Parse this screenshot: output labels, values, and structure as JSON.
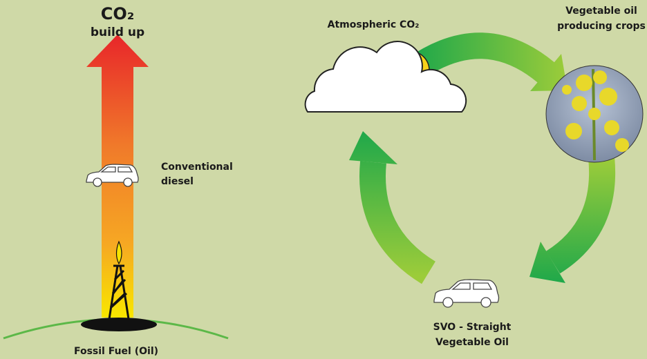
{
  "left": {
    "title": "CO₂",
    "subtitle": "build up",
    "vehicle_label": [
      "Conventional",
      "diesel"
    ],
    "source_label": "Fossil Fuel (Oil)"
  },
  "cycle": {
    "atmosphere_label": "Atmospheric CO₂",
    "crops_label": [
      "Vegetable oil",
      "producing crops"
    ],
    "vehicle_label": [
      "SVO - Straight",
      "Vegetable Oil"
    ]
  }
}
